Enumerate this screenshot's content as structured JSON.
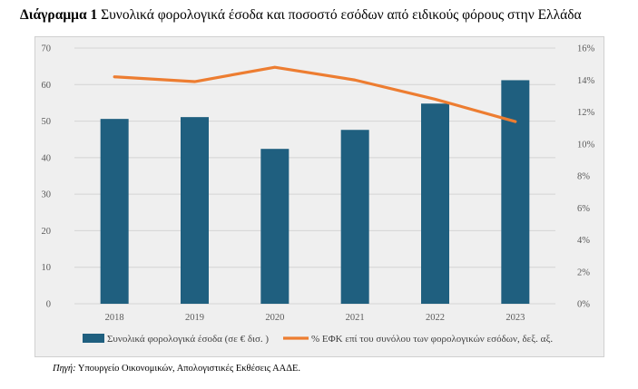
{
  "title": {
    "label": "Διάγραμμα 1",
    "text": " Συνολικά φορολογικά έσοδα και ποσοστό εσόδων από ειδικούς φόρους στην Ελλάδα"
  },
  "source": {
    "label": "Πηγή:",
    "text": " Υπουργείο Οικονομικών, Απολογιστικές Εκθέσεις ΑΑΔΕ."
  },
  "colors": {
    "bar": "#1f5f7f",
    "line": "#ed7d31",
    "grid": "#d4d4d4",
    "plot_bg": "#efefef"
  },
  "chart_data": {
    "type": "bar",
    "categories": [
      "2018",
      "2019",
      "2020",
      "2021",
      "2022",
      "2023"
    ],
    "series": [
      {
        "name": "Συνολικά φορολογικά έσοδα (σε € δισ. )",
        "type": "bar",
        "axis": "left",
        "values": [
          50.6,
          51.1,
          42.4,
          47.6,
          54.8,
          61.2
        ]
      },
      {
        "name": "% ΕΦΚ επί του συνόλου των φορολογικών εσόδων, δεξ. αξ.",
        "type": "line",
        "axis": "right",
        "values": [
          14.2,
          13.9,
          14.8,
          14.0,
          12.8,
          11.4
        ]
      }
    ],
    "y_left": {
      "ticks": [
        "0",
        "10",
        "20",
        "30",
        "40",
        "50",
        "60",
        "70"
      ],
      "ylim": [
        0,
        70
      ]
    },
    "y_right": {
      "ticks": [
        "0%",
        "2%",
        "4%",
        "6%",
        "8%",
        "10%",
        "12%",
        "14%",
        "16%"
      ],
      "ylim": [
        0,
        16
      ]
    },
    "grid": true,
    "legend": "bottom"
  }
}
